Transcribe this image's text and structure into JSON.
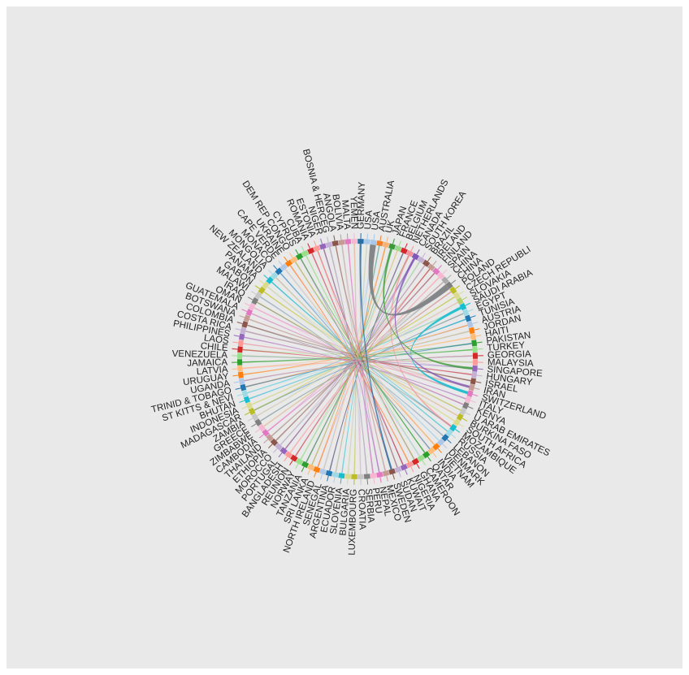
{
  "chart_data": {
    "type": "chord",
    "title": "",
    "nodes": [
      {
        "name": "GERMANY",
        "color": "#2a6fa3"
      },
      {
        "name": "USA",
        "color": "#a9c8e8"
      },
      {
        "name": "USA",
        "color": "#a9c8e8"
      },
      {
        "name": "AUSTRALIA",
        "color": "#f07f2b"
      },
      {
        "name": "UK",
        "color": "#f7b27a"
      },
      {
        "name": "JAPAN",
        "color": "#3a9a3a"
      },
      {
        "name": "FRANCE",
        "color": "#98d98e"
      },
      {
        "name": "BELGIUM",
        "color": "#d62728"
      },
      {
        "name": "NETHERLANDS",
        "color": "#f3909a"
      },
      {
        "name": "CANADA",
        "color": "#7f57b5"
      },
      {
        "name": "SOUTH KOREA",
        "color": "#c5b0d5"
      },
      {
        "name": "BRAZIL",
        "color": "#8c564b"
      },
      {
        "name": "IRELAND",
        "color": "#c49c94"
      },
      {
        "name": "FINLAND",
        "color": "#e377c2"
      },
      {
        "name": "SPAIN",
        "color": "#f7b6d2"
      },
      {
        "name": "CHINA",
        "color": "#aaaaaa"
      },
      {
        "name": "CHINA",
        "color": "#7f7f7f"
      },
      {
        "name": "POLAND",
        "color": "#bcbd22"
      },
      {
        "name": "CZECH REPUBLI",
        "color": "#dbdb8d"
      },
      {
        "name": "SLOVAKIA",
        "color": "#b5cf6b"
      },
      {
        "name": "SAUDI ARABIA",
        "color": "#17becf"
      },
      {
        "name": "EGYPT",
        "color": "#9edae5"
      },
      {
        "name": "TUNISIA",
        "color": "#1f77b4"
      },
      {
        "name": "AUSTRIA",
        "color": "#aec7e8"
      },
      {
        "name": "JORDAN",
        "color": "#ff7f0e"
      },
      {
        "name": "HAITI",
        "color": "#ffbb78"
      },
      {
        "name": "PAKISTAN",
        "color": "#2ca02c"
      },
      {
        "name": "TURKEY",
        "color": "#98df8a"
      },
      {
        "name": "GEORGIA",
        "color": "#d62728"
      },
      {
        "name": "MALAYSIA",
        "color": "#ff9896"
      },
      {
        "name": "SINGAPORE",
        "color": "#9467bd"
      },
      {
        "name": "HUNGARY",
        "color": "#c5b0d5"
      },
      {
        "name": "ISRAEL",
        "color": "#8c564b"
      },
      {
        "name": "IRAN",
        "color": "#c49c94"
      },
      {
        "name": "SWITZERLAND",
        "color": "#e377c2"
      },
      {
        "name": "ITALY",
        "color": "#f7b6d2"
      },
      {
        "name": "KENYA",
        "color": "#7f7f7f"
      },
      {
        "name": "U ARAB EMIRATES",
        "color": "#c7c7c7"
      },
      {
        "name": "BURKINA FASO",
        "color": "#bcbd22"
      },
      {
        "name": "SOUTH AFRICA",
        "color": "#dbdb8d"
      },
      {
        "name": "MOZAMBIQUE",
        "color": "#17becf"
      },
      {
        "name": "RUSSIA",
        "color": "#9edae5"
      },
      {
        "name": "LEBANON",
        "color": "#1f77b4"
      },
      {
        "name": "DENMARK",
        "color": "#aec7e8"
      },
      {
        "name": "VIETNAM",
        "color": "#ff7f0e"
      },
      {
        "name": "INDIA",
        "color": "#ffbb78"
      },
      {
        "name": "QATAR",
        "color": "#2ca02c"
      },
      {
        "name": "CAMEROON",
        "color": "#98df8a"
      },
      {
        "name": "GHANA",
        "color": "#d62728"
      },
      {
        "name": "NIGERIA",
        "color": "#ff9896"
      },
      {
        "name": "KUWAIT",
        "color": "#9467bd"
      },
      {
        "name": "SUDAN",
        "color": "#c5b0d5"
      },
      {
        "name": "SWEDEN",
        "color": "#8c564b"
      },
      {
        "name": "MEXICO",
        "color": "#c49c94"
      },
      {
        "name": "NEPAL",
        "color": "#e377c2"
      },
      {
        "name": "PERU",
        "color": "#f7b6d2"
      },
      {
        "name": "SERBIA",
        "color": "#7f7f7f"
      },
      {
        "name": "CROATIA",
        "color": "#c7c7c7"
      },
      {
        "name": "LUXEMBOURG",
        "color": "#bcbd22"
      },
      {
        "name": "BULGARIA",
        "color": "#dbdb8d"
      },
      {
        "name": "SLOVENIA",
        "color": "#17becf"
      },
      {
        "name": "ECUADOR",
        "color": "#9edae5"
      },
      {
        "name": "ARGENTINA",
        "color": "#1f77b4"
      },
      {
        "name": "SENEGAL",
        "color": "#aec7e8"
      },
      {
        "name": "NORTH IRELAND",
        "color": "#ff7f0e"
      },
      {
        "name": "SRI LANKA",
        "color": "#ffbb78"
      },
      {
        "name": "TANZANIA",
        "color": "#2ca02c"
      },
      {
        "name": "NORWAY",
        "color": "#98df8a"
      },
      {
        "name": "REUNION",
        "color": "#d62728"
      },
      {
        "name": "BANGLADESH",
        "color": "#ff9896"
      },
      {
        "name": "PORTUGAL",
        "color": "#9467bd"
      },
      {
        "name": "MOROCCO",
        "color": "#c5b0d5"
      },
      {
        "name": "ETHIOPIA",
        "color": "#8c564b"
      },
      {
        "name": "THAILAND",
        "color": "#c49c94"
      },
      {
        "name": "CAMBODIA",
        "color": "#e377c2"
      },
      {
        "name": "ZIMBABWE",
        "color": "#f7b6d2"
      },
      {
        "name": "GREECE",
        "color": "#7f7f7f"
      },
      {
        "name": "ZAMBIA",
        "color": "#c7c7c7"
      },
      {
        "name": "MADAGASCAR",
        "color": "#bcbd22"
      },
      {
        "name": "INDONESIA",
        "color": "#dbdb8d"
      },
      {
        "name": "BHUTAN",
        "color": "#17becf"
      },
      {
        "name": "ST KITTS & NEVI",
        "color": "#9edae5"
      },
      {
        "name": "TRINID & TOBAGO",
        "color": "#1f77b4"
      },
      {
        "name": "UGANDA",
        "color": "#aec7e8"
      },
      {
        "name": "URUGUAY",
        "color": "#ff7f0e"
      },
      {
        "name": "LATVIA",
        "color": "#ffbb78"
      },
      {
        "name": "JAMAICA",
        "color": "#2ca02c"
      },
      {
        "name": "VENEZUELA",
        "color": "#98df8a"
      },
      {
        "name": "CHILE",
        "color": "#d62728"
      },
      {
        "name": "LAOS",
        "color": "#ff9896"
      },
      {
        "name": "PHILIPPINES",
        "color": "#9467bd"
      },
      {
        "name": "COSTA RICA",
        "color": "#c5b0d5"
      },
      {
        "name": "COLOMBIA",
        "color": "#8c564b"
      },
      {
        "name": "BOTSWANA",
        "color": "#c49c94"
      },
      {
        "name": "GUATEMALA",
        "color": "#e377c2"
      },
      {
        "name": "OMAN",
        "color": "#f7b6d2"
      },
      {
        "name": "IRAQ",
        "color": "#7f7f7f"
      },
      {
        "name": "MALAWI",
        "color": "#c7c7c7"
      },
      {
        "name": "GABON",
        "color": "#bcbd22"
      },
      {
        "name": "PANAMA",
        "color": "#dbdb8d"
      },
      {
        "name": "NEW ZEALAND",
        "color": "#17becf"
      },
      {
        "name": "MONGOLIA",
        "color": "#9edae5"
      },
      {
        "name": "MONACO",
        "color": "#1f77b4"
      },
      {
        "name": "CAPE VERDE",
        "color": "#aec7e8"
      },
      {
        "name": "UKRAINE",
        "color": "#ff7f0e"
      },
      {
        "name": "DEM REP CONGO",
        "color": "#ffbb78"
      },
      {
        "name": "CYPRUS",
        "color": "#2ca02c"
      },
      {
        "name": "CUBA",
        "color": "#98df8a"
      },
      {
        "name": "ROMANIA",
        "color": "#d62728"
      },
      {
        "name": "ESTONIA",
        "color": "#ff9896"
      },
      {
        "name": "NIGER",
        "color": "#9467bd"
      },
      {
        "name": "BOSNIA & HERCEG",
        "color": "#c5b0d5"
      },
      {
        "name": "ANGOLA",
        "color": "#8c564b"
      },
      {
        "name": "BOLIVIA",
        "color": "#c49c94"
      },
      {
        "name": "MALTA",
        "color": "#e377c2"
      },
      {
        "name": "YEMEN",
        "color": "#f7b6d2"
      }
    ]
  }
}
